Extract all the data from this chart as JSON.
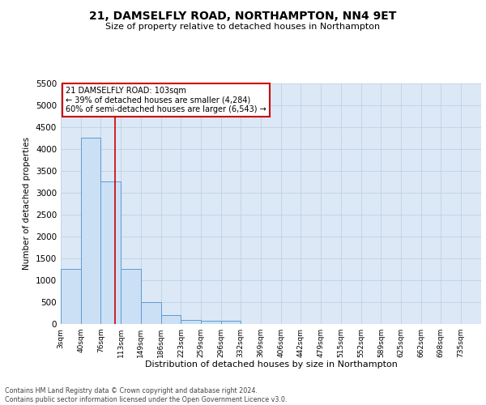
{
  "title": "21, DAMSELFLY ROAD, NORTHAMPTON, NN4 9ET",
  "subtitle": "Size of property relative to detached houses in Northampton",
  "xlabel": "Distribution of detached houses by size in Northampton",
  "ylabel": "Number of detached properties",
  "bin_labels": [
    "3sqm",
    "40sqm",
    "76sqm",
    "113sqm",
    "149sqm",
    "186sqm",
    "223sqm",
    "259sqm",
    "296sqm",
    "332sqm",
    "369sqm",
    "406sqm",
    "442sqm",
    "479sqm",
    "515sqm",
    "552sqm",
    "589sqm",
    "625sqm",
    "662sqm",
    "698sqm",
    "735sqm"
  ],
  "bin_edges": [
    3,
    40,
    76,
    113,
    149,
    186,
    223,
    259,
    296,
    332,
    369,
    406,
    442,
    479,
    515,
    552,
    589,
    625,
    662,
    698,
    735
  ],
  "bar_values": [
    1250,
    4250,
    3250,
    1250,
    500,
    200,
    100,
    75,
    75,
    0,
    0,
    0,
    0,
    0,
    0,
    0,
    0,
    0,
    0,
    0
  ],
  "bar_color": "#cce0f5",
  "bar_edge_color": "#5b9bd5",
  "property_size": 103,
  "red_line_color": "#cc0000",
  "annotation_line1": "21 DAMSELFLY ROAD: 103sqm",
  "annotation_line2": "← 39% of detached houses are smaller (4,284)",
  "annotation_line3": "60% of semi-detached houses are larger (6,543) →",
  "annotation_box_color": "#ffffff",
  "annotation_box_edge_color": "#cc0000",
  "ylim": [
    0,
    5500
  ],
  "yticks": [
    0,
    500,
    1000,
    1500,
    2000,
    2500,
    3000,
    3500,
    4000,
    4500,
    5000,
    5500
  ],
  "background_color": "#dce8f5",
  "grid_color": "#b8cde0",
  "footer_line1": "Contains HM Land Registry data © Crown copyright and database right 2024.",
  "footer_line2": "Contains public sector information licensed under the Open Government Licence v3.0."
}
